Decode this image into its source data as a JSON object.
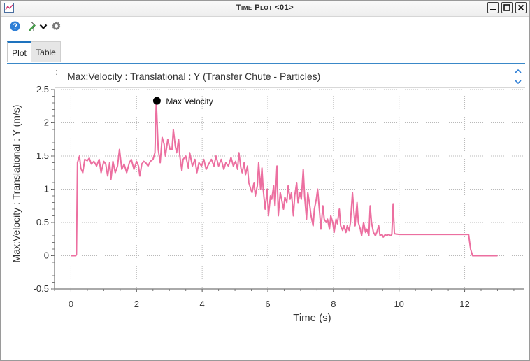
{
  "window": {
    "title": "Time Plot <01>"
  },
  "toolbar": {
    "icons": [
      "help-icon",
      "edit-icon",
      "chevron-down-icon",
      "gear-icon"
    ]
  },
  "tabs": [
    {
      "label": "Plot",
      "active": true
    },
    {
      "label": "Table",
      "active": false
    }
  ],
  "series_header": {
    "title": "Max:Velocity : Translational : Y (Transfer Chute - Particles)"
  },
  "colors": {
    "series": "#ec6fa0",
    "accent": "#1e73be"
  },
  "chart_data": {
    "type": "line",
    "xlabel": "Time (s)",
    "ylabel": "Max:Velocity : Translational : Y (m/s)",
    "xlim": [
      -0.5,
      13.8
    ],
    "ylim": [
      -0.5,
      2.5
    ],
    "x_ticks": [
      "0",
      "2",
      "4",
      "6",
      "8",
      "10",
      "12"
    ],
    "y_ticks": [
      "-0.5",
      "0",
      "0.5",
      "1",
      "1.5",
      "2",
      "2.5"
    ],
    "grid": true,
    "annotation": {
      "label": "Max Velocity",
      "x": 2.62,
      "y": 2.33
    },
    "series": [
      {
        "points": [
          [
            0.0,
            0.0
          ],
          [
            0.15,
            0.0
          ],
          [
            0.17,
            0.02
          ],
          [
            0.2,
            1.4
          ],
          [
            0.26,
            1.5
          ],
          [
            0.3,
            1.32
          ],
          [
            0.36,
            1.25
          ],
          [
            0.42,
            1.45
          ],
          [
            0.5,
            1.43
          ],
          [
            0.56,
            1.47
          ],
          [
            0.62,
            1.38
          ],
          [
            0.7,
            1.42
          ],
          [
            0.78,
            1.35
          ],
          [
            0.86,
            1.45
          ],
          [
            0.92,
            1.25
          ],
          [
            1.0,
            1.42
          ],
          [
            1.06,
            1.38
          ],
          [
            1.12,
            1.2
          ],
          [
            1.18,
            1.4
          ],
          [
            1.22,
            1.15
          ],
          [
            1.28,
            1.42
          ],
          [
            1.35,
            1.25
          ],
          [
            1.42,
            1.35
          ],
          [
            1.48,
            1.6
          ],
          [
            1.55,
            1.3
          ],
          [
            1.62,
            1.38
          ],
          [
            1.7,
            1.25
          ],
          [
            1.78,
            1.4
          ],
          [
            1.84,
            1.45
          ],
          [
            1.92,
            1.3
          ],
          [
            2.0,
            1.42
          ],
          [
            2.06,
            1.35
          ],
          [
            2.1,
            1.2
          ],
          [
            2.16,
            1.38
          ],
          [
            2.22,
            1.42
          ],
          [
            2.28,
            1.4
          ],
          [
            2.35,
            1.35
          ],
          [
            2.42,
            1.42
          ],
          [
            2.5,
            1.45
          ],
          [
            2.56,
            1.55
          ],
          [
            2.6,
            2.33
          ],
          [
            2.66,
            1.6
          ],
          [
            2.72,
            1.4
          ],
          [
            2.78,
            1.78
          ],
          [
            2.84,
            1.68
          ],
          [
            2.88,
            1.5
          ],
          [
            2.95,
            1.75
          ],
          [
            3.02,
            1.6
          ],
          [
            3.08,
            1.6
          ],
          [
            3.12,
            1.9
          ],
          [
            3.18,
            1.65
          ],
          [
            3.22,
            1.55
          ],
          [
            3.28,
            1.75
          ],
          [
            3.32,
            1.5
          ],
          [
            3.38,
            1.28
          ],
          [
            3.42,
            1.45
          ],
          [
            3.5,
            1.5
          ],
          [
            3.58,
            1.32
          ],
          [
            3.62,
            1.55
          ],
          [
            3.7,
            1.35
          ],
          [
            3.78,
            1.45
          ],
          [
            3.84,
            1.25
          ],
          [
            3.9,
            1.4
          ],
          [
            3.98,
            1.35
          ],
          [
            4.05,
            1.45
          ],
          [
            4.12,
            1.3
          ],
          [
            4.2,
            1.38
          ],
          [
            4.28,
            1.45
          ],
          [
            4.36,
            1.35
          ],
          [
            4.42,
            1.5
          ],
          [
            4.5,
            1.35
          ],
          [
            4.58,
            1.45
          ],
          [
            4.66,
            1.3
          ],
          [
            4.72,
            1.4
          ],
          [
            4.8,
            1.35
          ],
          [
            4.88,
            1.48
          ],
          [
            4.95,
            1.35
          ],
          [
            5.02,
            1.42
          ],
          [
            5.08,
            1.3
          ],
          [
            5.12,
            1.55
          ],
          [
            5.18,
            1.32
          ],
          [
            5.22,
            1.25
          ],
          [
            5.28,
            1.4
          ],
          [
            5.32,
            1.22
          ],
          [
            5.38,
            1.35
          ],
          [
            5.42,
            1.1
          ],
          [
            5.48,
            1.0
          ],
          [
            5.52,
            0.95
          ],
          [
            5.58,
            1.1
          ],
          [
            5.62,
            0.9
          ],
          [
            5.68,
            1.05
          ],
          [
            5.72,
            1.4
          ],
          [
            5.78,
            1.0
          ],
          [
            5.82,
            1.32
          ],
          [
            5.86,
            1.0
          ],
          [
            5.92,
            0.7
          ],
          [
            5.98,
            1.0
          ],
          [
            6.02,
            0.6
          ],
          [
            6.08,
            0.9
          ],
          [
            6.12,
            0.85
          ],
          [
            6.18,
            1.05
          ],
          [
            6.22,
            0.75
          ],
          [
            6.28,
            1.35
          ],
          [
            6.32,
            0.6
          ],
          [
            6.38,
            0.95
          ],
          [
            6.42,
            0.85
          ],
          [
            6.48,
            0.7
          ],
          [
            6.52,
            0.88
          ],
          [
            6.58,
            0.8
          ],
          [
            6.62,
            1.05
          ],
          [
            6.68,
            0.85
          ],
          [
            6.72,
            0.95
          ],
          [
            6.78,
            0.6
          ],
          [
            6.82,
            0.9
          ],
          [
            6.88,
            1.1
          ],
          [
            6.92,
            0.8
          ],
          [
            6.98,
            0.95
          ],
          [
            7.02,
            0.85
          ],
          [
            7.08,
            1.3
          ],
          [
            7.12,
            0.9
          ],
          [
            7.18,
            0.55
          ],
          [
            7.22,
            0.95
          ],
          [
            7.28,
            0.75
          ],
          [
            7.32,
            0.6
          ],
          [
            7.38,
            0.45
          ],
          [
            7.42,
            0.7
          ],
          [
            7.48,
            0.85
          ],
          [
            7.52,
            1.0
          ],
          [
            7.58,
            0.65
          ],
          [
            7.62,
            0.4
          ],
          [
            7.68,
            0.75
          ],
          [
            7.72,
            0.55
          ],
          [
            7.78,
            0.5
          ],
          [
            7.82,
            0.55
          ],
          [
            7.88,
            0.4
          ],
          [
            7.92,
            0.6
          ],
          [
            7.98,
            0.5
          ],
          [
            8.02,
            0.35
          ],
          [
            8.08,
            0.55
          ],
          [
            8.12,
            0.48
          ],
          [
            8.18,
            0.7
          ],
          [
            8.22,
            0.45
          ],
          [
            8.28,
            0.38
          ],
          [
            8.32,
            0.45
          ],
          [
            8.38,
            0.35
          ],
          [
            8.42,
            0.45
          ],
          [
            8.48,
            0.38
          ],
          [
            8.52,
            0.5
          ],
          [
            8.58,
            0.95
          ],
          [
            8.62,
            0.7
          ],
          [
            8.66,
            0.45
          ],
          [
            8.72,
            0.8
          ],
          [
            8.76,
            0.5
          ],
          [
            8.82,
            0.4
          ],
          [
            8.86,
            0.3
          ],
          [
            8.92,
            0.5
          ],
          [
            8.98,
            0.35
          ],
          [
            9.02,
            0.4
          ],
          [
            9.08,
            0.3
          ],
          [
            9.12,
            0.75
          ],
          [
            9.16,
            0.5
          ],
          [
            9.22,
            0.35
          ],
          [
            9.28,
            0.3
          ],
          [
            9.32,
            0.35
          ],
          [
            9.38,
            0.45
          ],
          [
            9.42,
            0.3
          ],
          [
            9.48,
            0.32
          ],
          [
            9.52,
            0.28
          ],
          [
            9.58,
            0.32
          ],
          [
            9.62,
            0.3
          ],
          [
            9.68,
            0.32
          ],
          [
            9.74,
            0.3
          ],
          [
            9.78,
            0.32
          ],
          [
            9.82,
            0.78
          ],
          [
            9.86,
            0.33
          ],
          [
            10.0,
            0.32
          ],
          [
            10.5,
            0.32
          ],
          [
            11.0,
            0.32
          ],
          [
            11.5,
            0.32
          ],
          [
            12.0,
            0.32
          ],
          [
            12.12,
            0.32
          ],
          [
            12.18,
            0.1
          ],
          [
            12.24,
            0.0
          ],
          [
            12.5,
            0.0
          ],
          [
            13.0,
            0.0
          ]
        ]
      }
    ]
  }
}
